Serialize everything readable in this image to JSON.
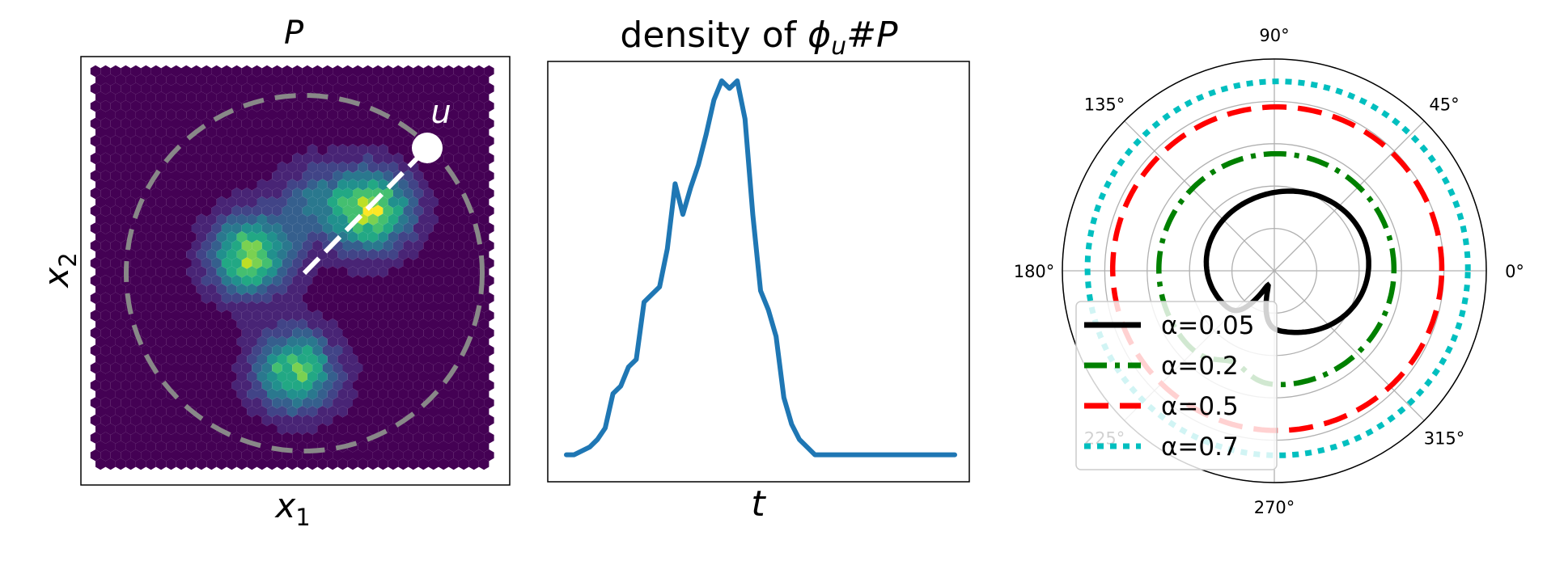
{
  "chart_data": [
    {
      "type": "heatmap",
      "title": "P",
      "xlabel_base": "x",
      "xlabel_sub": "1",
      "ylabel_base": "x",
      "ylabel_sub": "2",
      "point_label": "u",
      "direction_degrees": 45,
      "colormap": "viridis",
      "clusters": [
        {
          "cx": -0.3,
          "cy": 0.1,
          "weight": 0.95
        },
        {
          "cx": 0.38,
          "cy": 0.35,
          "weight": 1.0
        },
        {
          "cx": -0.05,
          "cy": -0.55,
          "weight": 0.85
        },
        {
          "cx": 0.05,
          "cy": 0.4,
          "weight": 0.35
        }
      ],
      "colors": {
        "background": "#440154",
        "circle": "#888888",
        "direction": "#ffffff"
      }
    },
    {
      "type": "line",
      "title_prefix": "density of ",
      "title_phi": "ϕ",
      "title_sub": "u",
      "title_suffix": "#P",
      "xlabel": "t",
      "series": [
        {
          "color": "#1f77b4",
          "x": [
            0,
            2,
            4,
            6,
            8,
            10,
            12,
            14,
            16,
            18,
            20,
            22,
            24,
            26,
            28,
            30,
            32,
            34,
            36,
            38,
            40,
            42,
            44,
            46,
            48,
            50,
            52,
            54,
            56,
            58,
            60,
            62,
            64,
            66,
            68,
            70,
            72,
            74,
            76,
            78,
            80,
            82,
            84,
            86,
            88,
            90,
            92,
            94,
            96,
            98,
            100
          ],
          "y": [
            0.02,
            0.02,
            0.03,
            0.04,
            0.06,
            0.09,
            0.18,
            0.2,
            0.25,
            0.27,
            0.42,
            0.44,
            0.46,
            0.56,
            0.73,
            0.65,
            0.72,
            0.78,
            0.86,
            0.95,
            1.0,
            0.98,
            1.0,
            0.9,
            0.65,
            0.45,
            0.4,
            0.33,
            0.17,
            0.1,
            0.06,
            0.04,
            0.02,
            0.02,
            0.02,
            0.02,
            0.02,
            0.02,
            0.02,
            0.02,
            0.02,
            0.02,
            0.02,
            0.02,
            0.02,
            0.02,
            0.02,
            0.02,
            0.02,
            0.02,
            0.02
          ]
        }
      ]
    },
    {
      "type": "line",
      "projection": "polar",
      "angular_ticks": [
        "0°",
        "45°",
        "90°",
        "135°",
        "180°",
        "225°",
        "270°",
        "315°"
      ],
      "radial_grid": 5,
      "legend_position": "lower-left",
      "series": [
        {
          "name": "α=0.05",
          "color": "#000000",
          "style": "solid",
          "base_radius": 0.43
        },
        {
          "name": "α=0.2",
          "color": "#008000",
          "style": "dashdot",
          "base_radius": 0.55
        },
        {
          "name": "α=0.5",
          "color": "#ff0000",
          "style": "dashed",
          "base_radius": 0.77
        },
        {
          "name": "α=0.7",
          "color": "#00bfbf",
          "style": "dotted",
          "base_radius": 0.89
        }
      ]
    }
  ]
}
